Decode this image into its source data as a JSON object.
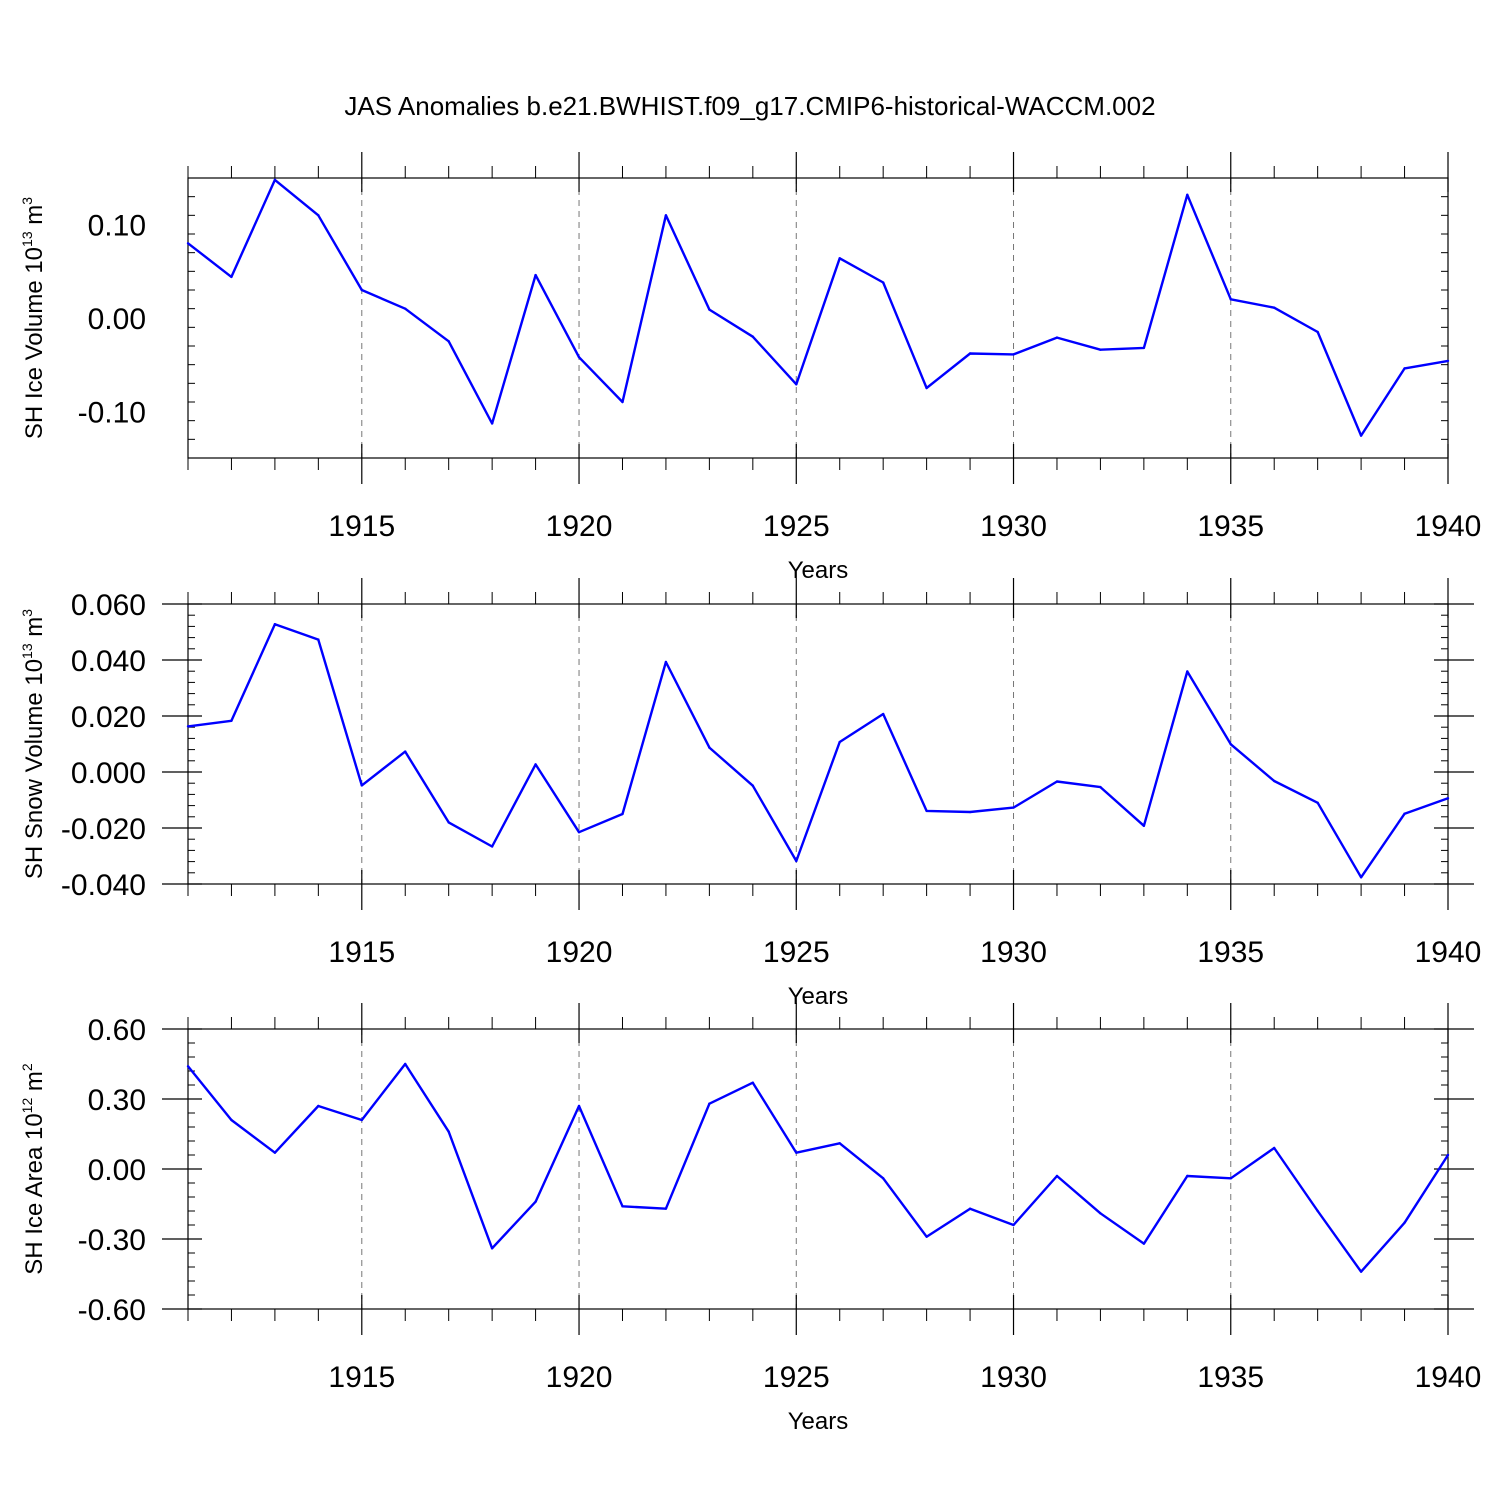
{
  "title": "JAS Anomalies b.e21.BWHIST.f09_g17.CMIP6-historical-WACCM.002",
  "line_color": "#0000ff",
  "chart_data": [
    {
      "type": "line",
      "id": "ice-volume",
      "ylabel": {
        "main": "SH Ice Volume 10",
        "sup": "13",
        "unit": " m",
        "unit_sup": "3"
      },
      "xlabel": "Years",
      "xlim": [
        1911,
        1940
      ],
      "ylim": [
        -0.15,
        0.15
      ],
      "yticks": [
        -0.1,
        0.0,
        0.1
      ],
      "ytick_labels": [
        "-0.10",
        "0.00",
        "0.10"
      ],
      "xticks": [
        1915,
        1920,
        1925,
        1930,
        1935,
        1940
      ],
      "xtick_labels": [
        "1915",
        "1920",
        "1925",
        "1930",
        "1935",
        "1940"
      ],
      "x": [
        1911,
        1912,
        1913,
        1914,
        1915,
        1916,
        1917,
        1918,
        1919,
        1920,
        1921,
        1922,
        1923,
        1924,
        1925,
        1926,
        1927,
        1928,
        1929,
        1930,
        1931,
        1932,
        1933,
        1934,
        1935,
        1936,
        1937,
        1938,
        1939,
        1940
      ],
      "values": [
        0.08,
        0.044,
        0.148,
        0.11,
        0.03,
        0.01,
        -0.025,
        -0.113,
        0.046,
        -0.042,
        -0.09,
        0.11,
        0.009,
        -0.02,
        -0.071,
        0.064,
        0.038,
        -0.075,
        -0.038,
        -0.039,
        -0.021,
        -0.034,
        -0.032,
        0.132,
        0.02,
        0.011,
        -0.015,
        -0.126,
        -0.054,
        -0.046
      ]
    },
    {
      "type": "line",
      "id": "snow-volume",
      "ylabel": {
        "main": "SH Snow Volume 10",
        "sup": "13",
        "unit": " m",
        "unit_sup": "3"
      },
      "xlabel": "Years",
      "xlim": [
        1911,
        1940
      ],
      "ylim": [
        -0.04,
        0.06
      ],
      "yticks": [
        -0.04,
        -0.02,
        0.0,
        0.02,
        0.04,
        0.06
      ],
      "ytick_labels": [
        "-0.040",
        "-0.020",
        "0.000",
        "0.020",
        "0.040",
        "0.060"
      ],
      "xticks": [
        1915,
        1920,
        1925,
        1930,
        1935,
        1940
      ],
      "xtick_labels": [
        "1915",
        "1920",
        "1925",
        "1930",
        "1935",
        "1940"
      ],
      "x": [
        1911,
        1912,
        1913,
        1914,
        1915,
        1916,
        1917,
        1918,
        1919,
        1920,
        1921,
        1922,
        1923,
        1924,
        1925,
        1926,
        1927,
        1928,
        1929,
        1930,
        1931,
        1932,
        1933,
        1934,
        1935,
        1936,
        1937,
        1938,
        1939,
        1940
      ],
      "values": [
        0.0163,
        0.0183,
        0.0528,
        0.0473,
        -0.0048,
        0.0073,
        -0.018,
        -0.0266,
        0.0027,
        -0.0215,
        -0.015,
        0.0393,
        0.0087,
        -0.0049,
        -0.0318,
        0.0107,
        0.0207,
        -0.0139,
        -0.0143,
        -0.0127,
        -0.0034,
        -0.0054,
        -0.0192,
        0.0359,
        0.0099,
        -0.0032,
        -0.011,
        -0.0376,
        -0.0149,
        -0.0094
      ]
    },
    {
      "type": "line",
      "id": "ice-area",
      "ylabel": {
        "main": "SH Ice Area 10",
        "sup": "12",
        "unit": " m",
        "unit_sup": "2"
      },
      "xlabel": "Years",
      "xlim": [
        1911,
        1940
      ],
      "ylim": [
        -0.6,
        0.6
      ],
      "yticks": [
        -0.6,
        -0.3,
        0.0,
        0.3,
        0.6
      ],
      "ytick_labels": [
        "-0.60",
        "-0.30",
        "0.00",
        "0.30",
        "0.60"
      ],
      "xticks": [
        1915,
        1920,
        1925,
        1930,
        1935,
        1940
      ],
      "xtick_labels": [
        "1915",
        "1920",
        "1925",
        "1930",
        "1935",
        "1940"
      ],
      "x": [
        1911,
        1912,
        1913,
        1914,
        1915,
        1916,
        1917,
        1918,
        1919,
        1920,
        1921,
        1922,
        1923,
        1924,
        1925,
        1926,
        1927,
        1928,
        1929,
        1930,
        1931,
        1932,
        1933,
        1934,
        1935,
        1936,
        1937,
        1938,
        1939,
        1940
      ],
      "values": [
        0.44,
        0.21,
        0.07,
        0.27,
        0.21,
        0.45,
        0.16,
        -0.34,
        -0.14,
        0.27,
        -0.16,
        -0.17,
        0.28,
        0.37,
        0.07,
        0.11,
        -0.04,
        -0.29,
        -0.17,
        -0.24,
        -0.03,
        -0.19,
        -0.32,
        -0.03,
        -0.04,
        0.09,
        -0.18,
        -0.44,
        -0.23,
        0.06
      ]
    }
  ]
}
